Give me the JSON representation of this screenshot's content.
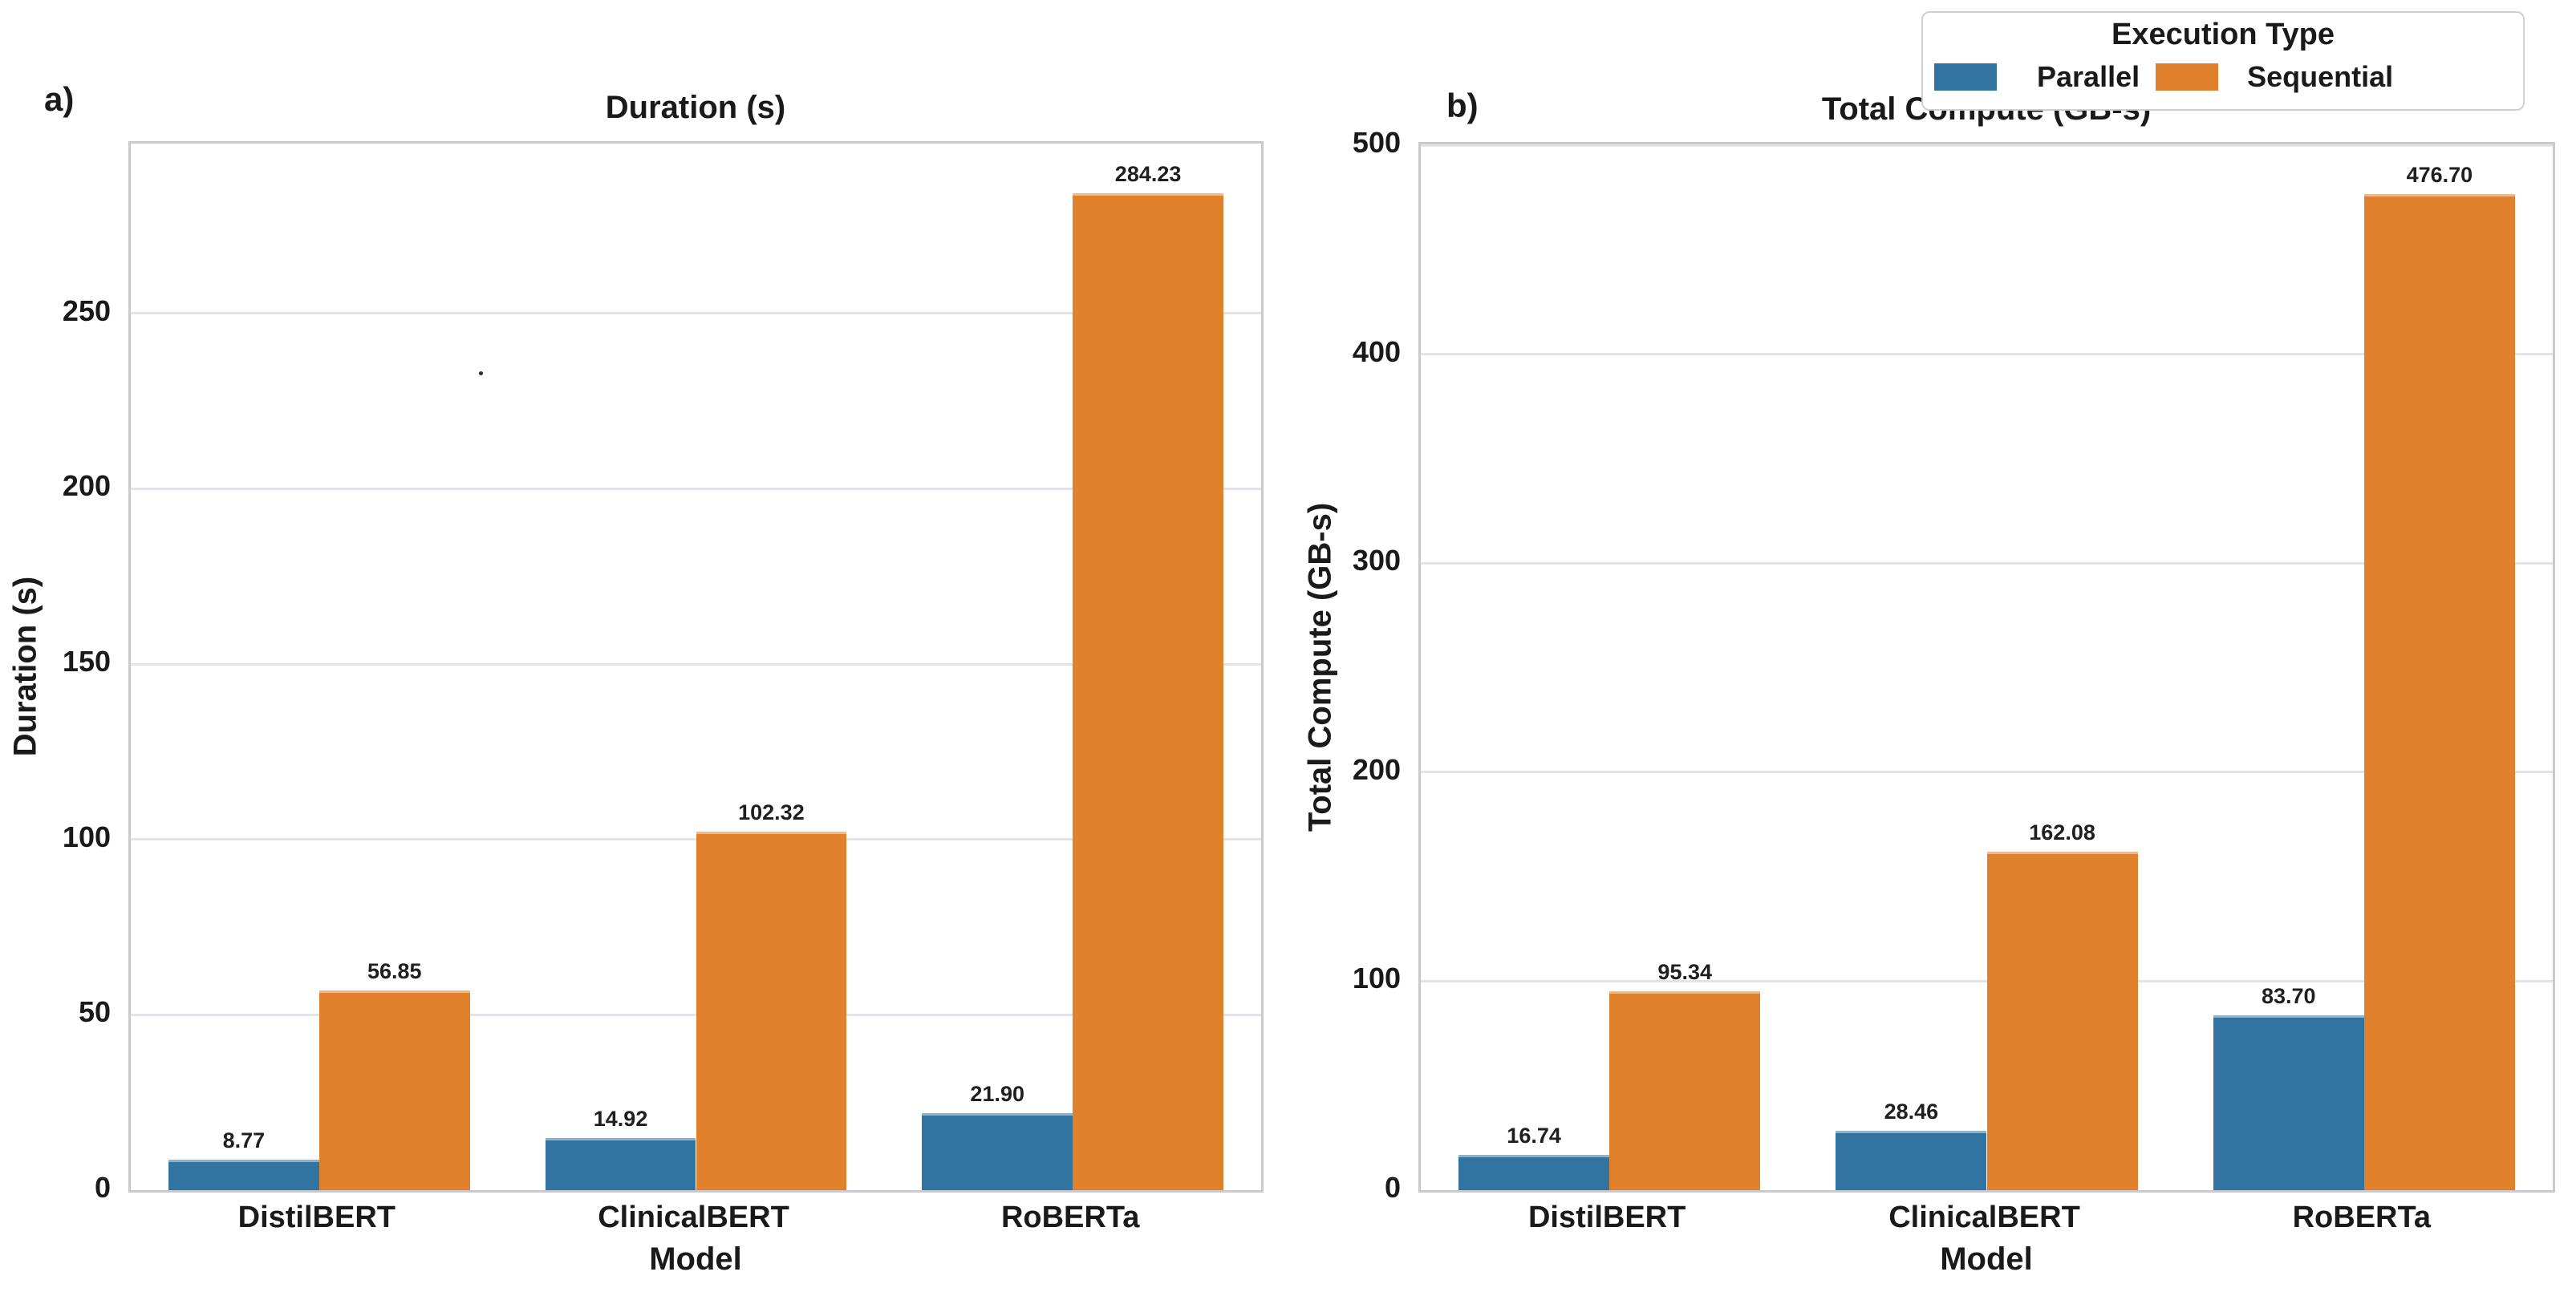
{
  "legend": {
    "title": "Execution Type",
    "position": "upper-right",
    "items": [
      {
        "label": "Parallel",
        "color": "#3274A1"
      },
      {
        "label": "Sequential",
        "color": "#E1812C"
      }
    ]
  },
  "chart_data": [
    {
      "id": "a",
      "type": "bar",
      "panel_label": "a)",
      "title": "Duration (s)",
      "xlabel": "Model",
      "ylabel": "Duration (s)",
      "categories": [
        "DistilBERT",
        "ClinicalBERT",
        "RoBERTa"
      ],
      "series": [
        {
          "name": "Parallel",
          "color": "#3274A1",
          "values": [
            8.77,
            14.92,
            21.9
          ],
          "labels": [
            "8.77",
            "14.92",
            "21.90"
          ]
        },
        {
          "name": "Sequential",
          "color": "#E1812C",
          "values": [
            56.85,
            102.32,
            284.23
          ],
          "labels": [
            "56.85",
            "102.32",
            "284.23"
          ]
        }
      ],
      "ylim": [
        0,
        298.4
      ],
      "yticks": [
        0,
        50,
        100,
        150,
        200,
        250
      ],
      "grid": true,
      "legend_shown": false
    },
    {
      "id": "b",
      "type": "bar",
      "panel_label": "b)",
      "title": "Total Compute (GB-s)",
      "xlabel": "Model",
      "ylabel": "Total Compute (GB-s)",
      "categories": [
        "DistilBERT",
        "ClinicalBERT",
        "RoBERTa"
      ],
      "series": [
        {
          "name": "Parallel",
          "color": "#3274A1",
          "values": [
            16.74,
            28.46,
            83.7
          ],
          "labels": [
            "16.74",
            "28.46",
            "83.70"
          ]
        },
        {
          "name": "Sequential",
          "color": "#E1812C",
          "values": [
            95.34,
            162.08,
            476.7
          ],
          "labels": [
            "95.34",
            "162.08",
            "476.70"
          ]
        }
      ],
      "ylim": [
        0,
        500.5
      ],
      "yticks": [
        0,
        100,
        200,
        300,
        400,
        500
      ],
      "grid": true,
      "legend_shown": false
    }
  ]
}
